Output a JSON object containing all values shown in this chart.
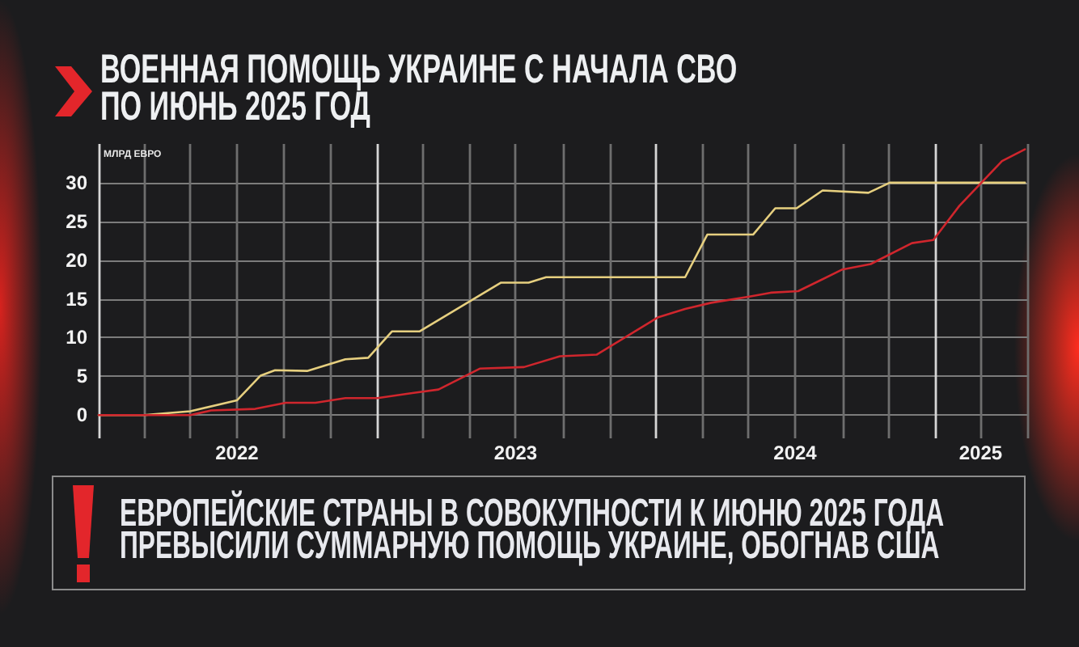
{
  "chart_data": {
    "type": "line",
    "title": "ВОЕННАЯ ПОМОЩЬ УКРАИНЕ С НАЧАЛА СВО ПО ИЮНЬ 2025 ГОД",
    "ylabel": "МЛРД ЕВРО",
    "annotations": [
      "ЕВРОПЕЙСКИЕ СТРАНЫ В СОВОКУПНОСТИ К ИЮНЮ 2025 ГОДА ПРЕВЫСИЛИ СУММАРНУЮ ПОМОЩЬ УКРАИНЕ, ОБОГНАВ США"
    ],
    "series": [
      {
        "color": "#e6cf7f",
        "x": [
          "2022-01-01",
          "2022-03-01",
          "2022-05-01",
          "2022-07-01",
          "2022-08-01",
          "2022-08-20",
          "2022-10-01",
          "2022-11-20",
          "2022-12-20",
          "2023-01-20",
          "2023-02-25",
          "2023-06-12",
          "2023-07-18",
          "2023-08-10",
          "2024-02-08",
          "2024-03-08",
          "2024-05-07",
          "2024-06-05",
          "2024-07-03",
          "2024-08-06",
          "2024-10-05",
          "2024-11-02",
          "2025-04-28"
        ],
        "values": [
          0,
          0,
          0.5,
          1.9,
          5.1,
          5.8,
          5.7,
          7.2,
          7.4,
          10.8,
          10.8,
          17.1,
          17.1,
          17.8,
          17.8,
          23.3,
          23.3,
          26.7,
          26.7,
          29.0,
          28.7,
          30.0,
          30.0
        ]
      },
      {
        "color": "#d0262d",
        "x": [
          "2022-01-01",
          "2022-05-01",
          "2022-05-28",
          "2022-07-25",
          "2022-09-03",
          "2022-10-12",
          "2022-11-20",
          "2023-01-01",
          "2023-02-12",
          "2023-03-22",
          "2023-05-15",
          "2023-07-12",
          "2023-08-28",
          "2023-10-15",
          "2024-01-03",
          "2024-02-08",
          "2024-03-13",
          "2024-05-02",
          "2024-05-30",
          "2024-07-05",
          "2024-09-01",
          "2024-10-08",
          "2024-12-01",
          "2024-12-29",
          "2025-02-01",
          "2025-03-02",
          "2025-03-29",
          "2025-04-28"
        ],
        "values": [
          0,
          0,
          0.6,
          0.8,
          1.6,
          1.6,
          2.2,
          2.2,
          2.8,
          3.3,
          6.0,
          6.2,
          7.6,
          7.8,
          12.6,
          13.7,
          14.5,
          15.3,
          15.8,
          16.0,
          18.8,
          19.5,
          22.2,
          22.6,
          27.0,
          30.0,
          32.8,
          34.3
        ]
      }
    ],
    "xlim": [
      "2022-01-01",
      "2025-05-01"
    ],
    "xticks": [
      {
        "value": "2022-01-01",
        "label": null
      },
      {
        "value": "2022-03-01",
        "label": null
      },
      {
        "value": "2022-05-01",
        "label": null
      },
      {
        "value": "2022-07-01",
        "label": "2022"
      },
      {
        "value": "2022-09-01",
        "label": null
      },
      {
        "value": "2022-11-01",
        "label": null
      },
      {
        "value": "2023-01-01",
        "label": null
      },
      {
        "value": "2023-03-01",
        "label": null
      },
      {
        "value": "2023-05-01",
        "label": null
      },
      {
        "value": "2023-07-01",
        "label": "2023"
      },
      {
        "value": "2023-09-01",
        "label": null
      },
      {
        "value": "2023-11-01",
        "label": null
      },
      {
        "value": "2024-01-01",
        "label": null
      },
      {
        "value": "2024-03-01",
        "label": null
      },
      {
        "value": "2024-05-01",
        "label": null
      },
      {
        "value": "2024-07-01",
        "label": "2024"
      },
      {
        "value": "2024-09-01",
        "label": null
      },
      {
        "value": "2024-11-01",
        "label": null
      },
      {
        "value": "2025-01-01",
        "label": null
      },
      {
        "value": "2025-03-01",
        "label": "2025"
      },
      {
        "value": "2025-05-01",
        "label": null
      }
    ],
    "ylim": [
      -3,
      35
    ],
    "yticks": [
      0,
      5,
      10,
      15,
      20,
      25,
      30
    ],
    "grid": true,
    "marker": "none"
  }
}
